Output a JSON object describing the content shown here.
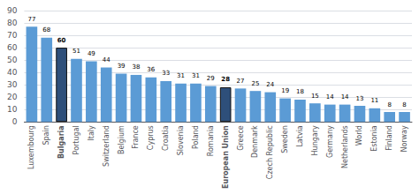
{
  "chart_data": {
    "type": "bar",
    "categories": [
      "Luxembourg",
      "Spain",
      "Bulgaria",
      "Portugal",
      "Italy",
      "Switzerland",
      "Belgium",
      "France",
      "Cyprus",
      "Croatia",
      "Slovenia",
      "Poland",
      "Romania",
      "European Union",
      "Greece",
      "Denmark",
      "Czech Republic",
      "Sweden",
      "Latvia",
      "Hungary",
      "Germany",
      "Netherlands",
      "World",
      "Estonia",
      "Finland",
      "Norway"
    ],
    "values": [
      77,
      68,
      60,
      51,
      49,
      44,
      39,
      38,
      36,
      33,
      31,
      31,
      29,
      28,
      27,
      25,
      24,
      19,
      18,
      15,
      14,
      14,
      13,
      11,
      8,
      8
    ],
    "colors": [
      "#5b9bd5",
      "#5b9bd5",
      "#2e4f7a",
      "#5b9bd5",
      "#5b9bd5",
      "#5b9bd5",
      "#5b9bd5",
      "#5b9bd5",
      "#5b9bd5",
      "#5b9bd5",
      "#5b9bd5",
      "#5b9bd5",
      "#5b9bd5",
      "#2e4f7a",
      "#5b9bd5",
      "#5b9bd5",
      "#5b9bd5",
      "#5b9bd5",
      "#5b9bd5",
      "#5b9bd5",
      "#5b9bd5",
      "#5b9bd5",
      "#5b9bd5",
      "#5b9bd5",
      "#5b9bd5",
      "#5b9bd5"
    ],
    "ylim": [
      0,
      90
    ],
    "yticks": [
      0,
      10,
      20,
      30,
      40,
      50,
      60,
      70,
      80,
      90
    ],
    "grid": true,
    "data_labels": true
  }
}
